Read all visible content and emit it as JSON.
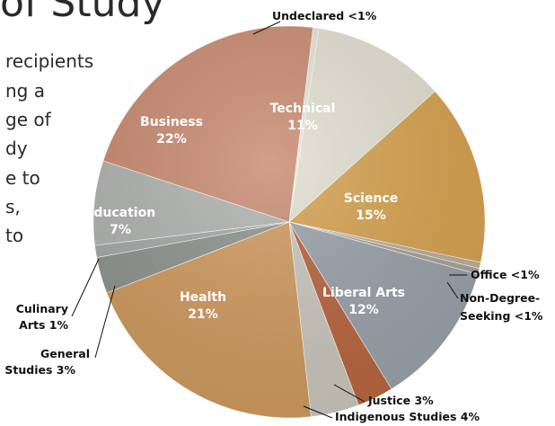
{
  "title_fragment": "of Study",
  "intro_fragments": [
    "recipients",
    "ng a",
    "ge of",
    "dy",
    "e to",
    "s,",
    "to"
  ],
  "chart_data": {
    "type": "pie",
    "title": "of Study",
    "unit": "%",
    "slices": [
      {
        "name": "Undeclared",
        "label": "Undeclared <1%",
        "value": 0.5,
        "color": "#e6e3d8"
      },
      {
        "name": "Technical",
        "label": "Technical",
        "pct": "11%",
        "value": 11,
        "color": "#e2dfd1"
      },
      {
        "name": "Science",
        "label": "Science",
        "pct": "15%",
        "value": 15,
        "color": "#d6a24f"
      },
      {
        "name": "Office",
        "label": "Office <1%",
        "value": 0.5,
        "color": "#b9b09a"
      },
      {
        "name": "Non-Degree-Seeking",
        "label": "Non-Degree-Seeking <1%",
        "label_lines": [
          "Non-Degree-",
          "Seeking <1%"
        ],
        "value": 0.5,
        "color": "#a7a39a"
      },
      {
        "name": "Liberal Arts",
        "label": "Liberal Arts",
        "pct": "12%",
        "value": 12,
        "color": "#9aa1aa"
      },
      {
        "name": "Justice",
        "label": "Justice 3%",
        "value": 3,
        "color": "#b8653e"
      },
      {
        "name": "Indigenous Studies",
        "label": "Indigenous Studies 4%",
        "value": 4,
        "color": "#c9c6bd"
      },
      {
        "name": "Health",
        "label": "Health",
        "pct": "21%",
        "value": 21,
        "color": "#cf9a5e"
      },
      {
        "name": "General Studies",
        "label": "General Studies 3%",
        "label_lines": [
          "General",
          "Studies 3%"
        ],
        "value": 3,
        "color": "#8d938f"
      },
      {
        "name": "Culinary Arts",
        "label": "Culinary Arts 1%",
        "label_lines": [
          "Culinary",
          "Arts 1%"
        ],
        "value": 1,
        "color": "#a4a8a6"
      },
      {
        "name": "Education",
        "label": "Education",
        "pct": "7%",
        "value": 7,
        "color": "#b0b2b0"
      },
      {
        "name": "Business",
        "label": "Business",
        "pct": "22%",
        "value": 22,
        "color": "#c98a70"
      }
    ]
  }
}
